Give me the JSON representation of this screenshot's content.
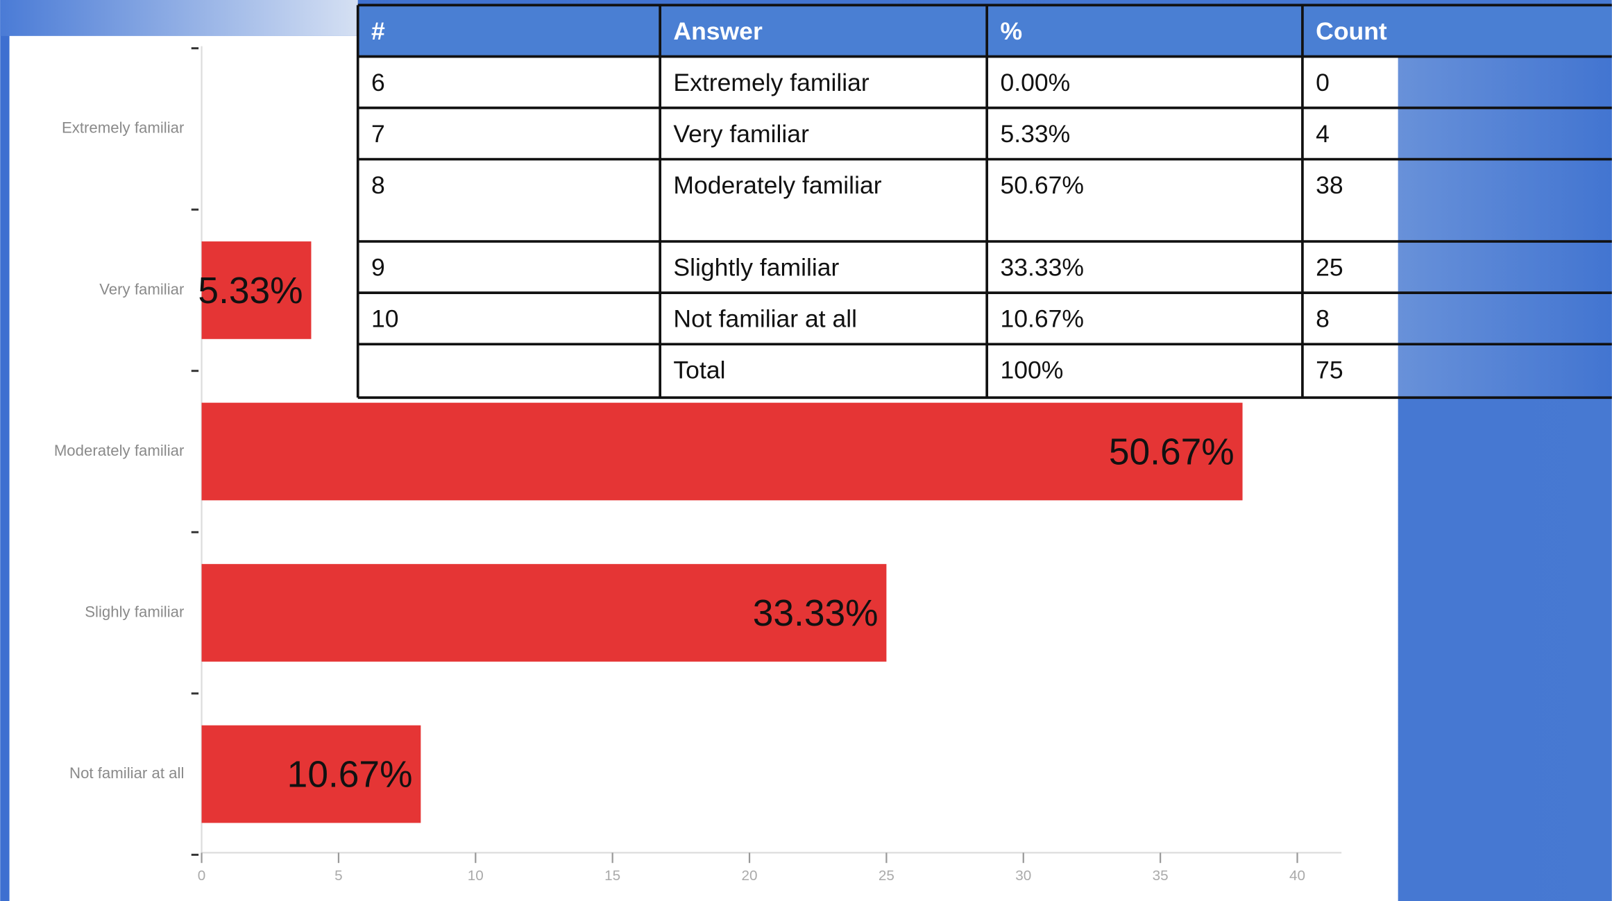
{
  "chart_data": {
    "type": "bar",
    "orientation": "horizontal",
    "categories": [
      "Extremely familiar",
      "Very familiar",
      "Moderately familiar",
      "Slighly familiar",
      "Not familiar at all"
    ],
    "values": [
      0,
      4,
      38,
      25,
      8
    ],
    "annotations": [
      null,
      "5.33%",
      "50.67%",
      "33.33%",
      "10.67%"
    ],
    "color": "#e53535",
    "xlim": [
      0,
      40
    ],
    "xticks": [
      0,
      5,
      10,
      15,
      20,
      25,
      30,
      35,
      40
    ]
  },
  "table": {
    "header": [
      "#",
      "Answer",
      "%",
      "Count"
    ],
    "rows": [
      [
        "6",
        "Extremely familiar",
        "0.00%",
        "0"
      ],
      [
        "7",
        "Very familiar",
        "5.33%",
        "4"
      ],
      [
        "8",
        "Moderately familiar",
        "50.67%",
        "38"
      ],
      [
        "9",
        "Slightly familiar",
        "33.33%",
        "25"
      ],
      [
        "10",
        "Not familiar at all",
        "10.67%",
        "8"
      ],
      [
        "",
        "Total",
        "100%",
        "75"
      ]
    ]
  }
}
